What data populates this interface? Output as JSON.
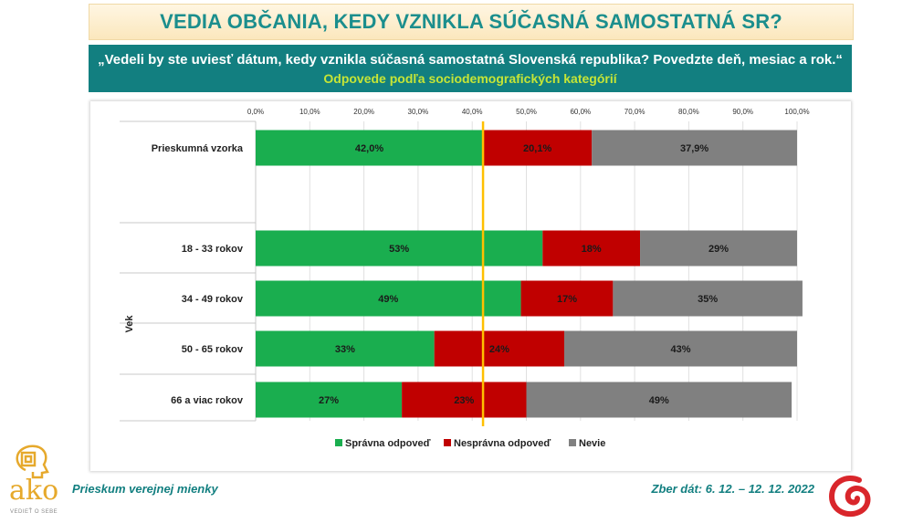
{
  "title": "VEDIA OBČANIA, KEDY VZNIKLA SÚČASNÁ SAMOSTATNÁ SR?",
  "question": "„Vedeli by ste uviesť dátum, kedy vznikla súčasná samostatná Slovenská republika? Povedzte deň, mesiac a rok.“",
  "subtitle": "Odpovede podľa sociodemografických kategórií",
  "footer": {
    "left": "Prieskum verejnej mienky",
    "right": "Zber dát: 6. 12. – 12. 12. 2022"
  },
  "logo": {
    "text": "ako",
    "tagline": "VEDIEŤ O SEBE"
  },
  "chart_data": {
    "type": "bar",
    "orientation": "horizontal",
    "stacked": true,
    "x_ticks": [
      "0,0%",
      "10,0%",
      "20,0%",
      "30,0%",
      "40,0%",
      "50,0%",
      "60,0%",
      "70,0%",
      "80,0%",
      "90,0%",
      "100,0%"
    ],
    "xlim": [
      0,
      100
    ],
    "group_label": "Vek",
    "categories": [
      "Prieskumná vzorka",
      "18 - 33 rokov",
      "34 - 49 rokov",
      "50 - 65 rokov",
      "66 a viac rokov"
    ],
    "series": [
      {
        "name": "Správna odpoveď",
        "color": "#1aae4f",
        "values": [
          42.0,
          53,
          49,
          33,
          27
        ],
        "labels": [
          "42,0%",
          "53%",
          "49%",
          "33%",
          "27%"
        ]
      },
      {
        "name": "Nesprávna odpoveď",
        "color": "#c00000",
        "values": [
          20.1,
          18,
          17,
          24,
          23
        ],
        "labels": [
          "20,1%",
          "18%",
          "17%",
          "24%",
          "23%"
        ]
      },
      {
        "name": "Nevie",
        "color": "#808080",
        "values": [
          37.9,
          29,
          35,
          43,
          49
        ],
        "labels": [
          "37,9%",
          "29%",
          "35%",
          "43%",
          "49%"
        ]
      }
    ],
    "reference_line": {
      "value": 42.0,
      "color": "#ffc000"
    },
    "legend_position": "bottom",
    "grid": true
  }
}
